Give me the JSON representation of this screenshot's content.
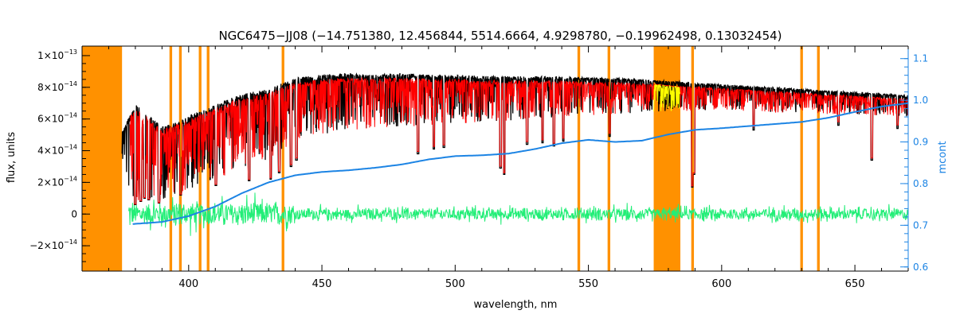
{
  "chart_data": {
    "type": "line",
    "title": "NGC6475−JJ08    (−14.751380, 12.456844, 5514.6664, 4.9298780, −0.19962498, 0.13032454)",
    "xlabel": "wavelength, nm",
    "ylabel": "flux, units",
    "y2label": "mcont",
    "xlim": [
      360,
      670
    ],
    "ylim": [
      -3.6e-14,
      1.06e-13
    ],
    "y2lim": [
      0.59,
      1.13
    ],
    "x_ticks": [
      400,
      450,
      500,
      550,
      600,
      650
    ],
    "x_tick_labels": [
      "400",
      "450",
      "500",
      "550",
      "600",
      "650"
    ],
    "y_ticks": [
      -2e-14,
      0,
      2e-14,
      4e-14,
      6e-14,
      8e-14,
      1e-13
    ],
    "y_tick_labels": [
      {
        "mant": "−2×10",
        "exp": "−14"
      },
      {
        "mant": "0",
        "exp": ""
      },
      {
        "mant": "2×10",
        "exp": "−14"
      },
      {
        "mant": "4×10",
        "exp": "−14"
      },
      {
        "mant": "6×10",
        "exp": "−14"
      },
      {
        "mant": "8×10",
        "exp": "−14"
      },
      {
        "mant": "1×10",
        "exp": "−13"
      }
    ],
    "y2_ticks": [
      0.6,
      0.7,
      0.8,
      0.9,
      1.0,
      1.1
    ],
    "y2_tick_labels": [
      "0.6",
      "0.7",
      "0.8",
      "0.9",
      "1.0",
      "1.1"
    ],
    "masked_regions": [
      [
        360,
        375
      ],
      [
        392.8,
        393.8
      ],
      [
        396.4,
        397.4
      ],
      [
        403.8,
        404.8
      ],
      [
        406.8,
        407.8
      ],
      [
        434.9,
        435.9
      ],
      [
        545.9,
        546.9
      ],
      [
        557.2,
        558.2
      ],
      [
        574.5,
        584.5
      ],
      [
        588.6,
        589.6
      ],
      [
        629.5,
        630.5
      ],
      [
        635.8,
        636.8
      ]
    ],
    "observed_envelope": {
      "name": "observed",
      "x": [
        375,
        380,
        390,
        400,
        410,
        420,
        430,
        440,
        450,
        460,
        470,
        480,
        490,
        500,
        510,
        520,
        530,
        540,
        550,
        560,
        570,
        580,
        590,
        600,
        610,
        620,
        630,
        640,
        650,
        660,
        670
      ],
      "upper": [
        5.2e-14,
        7e-14,
        5.5e-14,
        6.2e-14,
        6.9e-14,
        7.6e-14,
        7.9e-14,
        8.6e-14,
        8.8e-14,
        8.9e-14,
        8.8e-14,
        8.9e-14,
        8.8e-14,
        8.8e-14,
        8.7e-14,
        8.7e-14,
        8.7e-14,
        8.7e-14,
        8.6e-14,
        8.6e-14,
        8.5e-14,
        8.4e-14,
        8.3e-14,
        8.2e-14,
        8.1e-14,
        8e-14,
        7.9e-14,
        7.8e-14,
        7.7e-14,
        7.6e-14,
        7.5e-14
      ],
      "lower": [
        2.8e-14,
        7e-15,
        9e-15,
        1.5e-14,
        2.2e-14,
        2.8e-14,
        3.5e-14,
        4.6e-14,
        5e-14,
        5.3e-14,
        5.4e-14,
        5.5e-14,
        5.6e-14,
        5.7e-14,
        5.8e-14,
        5.9e-14,
        6e-14,
        6.1e-14,
        6.2e-14,
        6.3e-14,
        6.4e-14,
        6.5e-14,
        6.5e-14,
        6.5e-14,
        6.5e-14,
        6.4e-14,
        6.4e-14,
        6.3e-14,
        6.3e-14,
        6.2e-14,
        6.1e-14
      ]
    },
    "deep_lines": [
      {
        "x": 380.0,
        "y": 6e-15
      },
      {
        "x": 382.0,
        "y": 8e-15
      },
      {
        "x": 383.5,
        "y": 1e-14
      },
      {
        "x": 385.0,
        "y": 9e-15
      },
      {
        "x": 388.9,
        "y": 7e-15
      },
      {
        "x": 397.0,
        "y": 1.2e-14
      },
      {
        "x": 410.2,
        "y": 1.8e-14
      },
      {
        "x": 422.7,
        "y": 2.1e-14
      },
      {
        "x": 430.8,
        "y": 2.2e-14
      },
      {
        "x": 434.0,
        "y": 2.6e-14
      },
      {
        "x": 438.4,
        "y": 3e-14
      },
      {
        "x": 440.5,
        "y": 3.4e-14
      },
      {
        "x": 486.1,
        "y": 3.8e-14
      },
      {
        "x": 492.0,
        "y": 4.1e-14
      },
      {
        "x": 495.8,
        "y": 4.2e-14
      },
      {
        "x": 517.0,
        "y": 2.9e-14
      },
      {
        "x": 518.4,
        "y": 2.5e-14
      },
      {
        "x": 527.0,
        "y": 4.4e-14
      },
      {
        "x": 532.8,
        "y": 4.5e-14
      },
      {
        "x": 537.1,
        "y": 4.3e-14
      },
      {
        "x": 540.6,
        "y": 4.6e-14
      },
      {
        "x": 558.0,
        "y": 4.9e-14
      },
      {
        "x": 589.0,
        "y": 1.7e-14
      },
      {
        "x": 589.6,
        "y": 2.5e-14
      },
      {
        "x": 612.0,
        "y": 5.3e-14
      },
      {
        "x": 643.8,
        "y": 5.6e-14
      },
      {
        "x": 656.3,
        "y": 3.4e-14
      },
      {
        "x": 666.0,
        "y": 5.4e-14
      }
    ],
    "model_gaps": [
      [
        574.5,
        584.5
      ]
    ],
    "residual_baseline": 0,
    "continuum": {
      "name": "mcont",
      "axis": "right",
      "x": [
        379,
        390,
        400,
        410,
        420,
        430,
        440,
        450,
        460,
        470,
        480,
        490,
        500,
        510,
        520,
        530,
        540,
        550,
        560,
        570,
        580,
        590,
        600,
        610,
        620,
        630,
        640,
        650,
        660,
        670
      ],
      "y": [
        0.703,
        0.708,
        0.722,
        0.745,
        0.777,
        0.803,
        0.82,
        0.828,
        0.832,
        0.838,
        0.846,
        0.858,
        0.866,
        0.868,
        0.872,
        0.883,
        0.897,
        0.905,
        0.9,
        0.903,
        0.918,
        0.929,
        0.933,
        0.938,
        0.943,
        0.948,
        0.958,
        0.972,
        0.985,
        0.993
      ]
    },
    "colors": {
      "observed": "#000000",
      "model": "#ff0000",
      "masked": "#ff9100",
      "masked_model": "#ffff00",
      "residual": "#22ee77",
      "continuum": "#1c84e4",
      "right_axis": "#1c84e4",
      "axes": "#000000"
    },
    "grid": false,
    "legend": "none"
  }
}
